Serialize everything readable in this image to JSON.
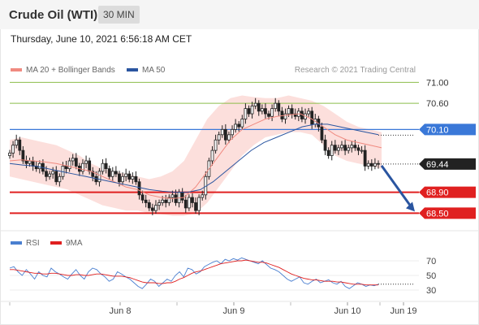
{
  "header": {
    "title": "Crude Oil (WTI)",
    "timeframe": "30 MIN"
  },
  "timestamp": "Thursday, June 10, 2021 6:56:18 AM CET",
  "legend": {
    "ma20": {
      "label": "MA 20 + Bollinger Bands",
      "color": "#f08a80"
    },
    "ma50": {
      "label": "MA 50",
      "color": "#2a55a0"
    },
    "rsi": {
      "label": "RSI",
      "color": "#4a7fd0"
    },
    "rsi_ma": {
      "label": "9MA",
      "color": "#e02020"
    }
  },
  "credit": "Research © 2021 Trading Central",
  "chart_data": [
    {
      "type": "candlestick",
      "title": "Crude Oil (WTI)",
      "ylim": [
        68.35,
        71.1
      ],
      "last_price": "69.44",
      "x_ticks": [
        "Jun 8",
        "Jun 9",
        "Jun 10",
        "Jun 19"
      ],
      "levels": [
        {
          "value": 71.0,
          "label": "71.00",
          "color": "#8bbd4a",
          "kind": "plain"
        },
        {
          "value": 70.6,
          "label": "70.60",
          "color": "#8bbd4a",
          "kind": "plain"
        },
        {
          "value": 70.1,
          "label": "70.10",
          "color": "#3a78d8",
          "kind": "tag"
        },
        {
          "value": 68.9,
          "label": "68.90",
          "color": "#e02020",
          "kind": "tag"
        },
        {
          "value": 68.5,
          "label": "68.50",
          "color": "#e02020",
          "kind": "tag"
        }
      ],
      "pivot_arrow": {
        "from": 69.44,
        "to": 68.5,
        "color": "#2a55a0"
      },
      "close_path": [
        69.65,
        69.8,
        69.9,
        69.7,
        69.5,
        69.45,
        69.5,
        69.4,
        69.35,
        69.45,
        69.3,
        69.2,
        69.25,
        69.3,
        69.1,
        69.2,
        69.4,
        69.35,
        69.5,
        69.55,
        69.4,
        69.3,
        69.45,
        69.5,
        69.3,
        69.2,
        69.1,
        69.3,
        69.45,
        69.35,
        69.2,
        69.3,
        69.25,
        69.1,
        69.2,
        69.25,
        69.15,
        69.2,
        69.1,
        68.85,
        68.75,
        68.7,
        68.6,
        68.55,
        68.65,
        68.7,
        68.75,
        68.7,
        68.8,
        68.85,
        68.7,
        68.9,
        68.75,
        68.6,
        68.8,
        68.7,
        68.55,
        68.8,
        68.85,
        69.2,
        69.5,
        69.7,
        69.9,
        70.0,
        70.1,
        69.9,
        70.0,
        70.1,
        70.2,
        70.15,
        70.3,
        70.5,
        70.4,
        70.55,
        70.6,
        70.45,
        70.5,
        70.4,
        70.35,
        70.5,
        70.6,
        70.45,
        70.3,
        70.4,
        70.5,
        70.4,
        70.35,
        70.45,
        70.3,
        70.4,
        70.45,
        70.2,
        70.3,
        70.15,
        69.9,
        69.7,
        69.6,
        69.8,
        69.7,
        69.75,
        69.8,
        69.7,
        69.75,
        69.8,
        69.75,
        69.7,
        69.7,
        69.4,
        69.45,
        69.4,
        69.45,
        69.44
      ],
      "ma20_path": [
        69.5,
        69.52,
        69.5,
        69.48,
        69.45,
        69.4,
        69.35,
        69.3,
        69.2,
        69.1,
        69.0,
        68.95,
        68.85,
        68.8,
        68.78,
        68.8,
        69.0,
        69.3,
        69.6,
        69.9,
        70.1,
        70.2,
        70.3,
        70.35,
        70.38,
        70.4,
        70.3,
        70.15,
        70.0,
        69.9,
        69.85,
        69.8,
        69.75
      ],
      "bb_upper_path": [
        69.9,
        69.95,
        69.9,
        69.85,
        69.8,
        69.7,
        69.6,
        69.45,
        69.35,
        69.3,
        69.25,
        69.2,
        69.15,
        69.2,
        69.3,
        69.5,
        69.9,
        70.3,
        70.55,
        70.7,
        70.75,
        70.72,
        70.7,
        70.7,
        70.75,
        70.7,
        70.65,
        70.55,
        70.4,
        70.25,
        70.15,
        70.1,
        70.05
      ],
      "bb_lower_path": [
        69.2,
        69.15,
        69.1,
        69.05,
        69.0,
        68.95,
        68.85,
        68.75,
        68.65,
        68.6,
        68.55,
        68.55,
        68.5,
        68.48,
        68.45,
        68.45,
        68.5,
        68.7,
        69.0,
        69.3,
        69.6,
        69.8,
        69.95,
        70.0,
        70.05,
        70.05,
        70.0,
        69.8,
        69.6,
        69.5,
        69.45,
        69.4,
        69.35
      ],
      "ma50_path": [
        69.45,
        69.42,
        69.4,
        69.35,
        69.3,
        69.25,
        69.2,
        69.15,
        69.1,
        69.05,
        69.0,
        68.95,
        68.92,
        68.9,
        68.9,
        68.95,
        69.1,
        69.3,
        69.5,
        69.7,
        69.85,
        69.95,
        70.05,
        70.15,
        70.2,
        70.2,
        70.15,
        70.1,
        70.05,
        70.0
      ]
    },
    {
      "type": "line",
      "title": "RSI",
      "ylim": [
        20,
        80
      ],
      "y_ticks": [
        70,
        50,
        30
      ],
      "series": [
        {
          "name": "RSI",
          "color": "#4a7fd0",
          "values": [
            60,
            62,
            55,
            50,
            58,
            52,
            45,
            55,
            50,
            48,
            60,
            55,
            52,
            48,
            45,
            52,
            58,
            50,
            45,
            55,
            60,
            58,
            52,
            48,
            42,
            45,
            55,
            52,
            48,
            45,
            40,
            35,
            32,
            38,
            45,
            42,
            35,
            40,
            45,
            42,
            50,
            55,
            48,
            60,
            58,
            52,
            55,
            62,
            65,
            68,
            70,
            66,
            72,
            70,
            73,
            71,
            74,
            72,
            70,
            68,
            66,
            70,
            65,
            60,
            58,
            55,
            50,
            45,
            42,
            45,
            48,
            40,
            38,
            42,
            45,
            40,
            42,
            44,
            40,
            38,
            42,
            35,
            32,
            36,
            40,
            38,
            35,
            37,
            36,
            38
          ]
        },
        {
          "name": "9MA",
          "color": "#e02020",
          "values": [
            58,
            58,
            57,
            56,
            55,
            54,
            53,
            53,
            52,
            52,
            53,
            53,
            52,
            51,
            50,
            50,
            51,
            51,
            50,
            50,
            51,
            52,
            52,
            51,
            50,
            49,
            49,
            49,
            48,
            47,
            45,
            43,
            41,
            40,
            40,
            40,
            39,
            39,
            40,
            40,
            42,
            45,
            47,
            50,
            53,
            55,
            56,
            58,
            60,
            62,
            64,
            66,
            67,
            68,
            69,
            70,
            70,
            71,
            70,
            69,
            68,
            68,
            67,
            65,
            63,
            61,
            58,
            55,
            52,
            50,
            48,
            46,
            45,
            44,
            44,
            43,
            42,
            42,
            42,
            41,
            41,
            40,
            39,
            38,
            38,
            38,
            37,
            37,
            37,
            37
          ]
        }
      ]
    }
  ]
}
